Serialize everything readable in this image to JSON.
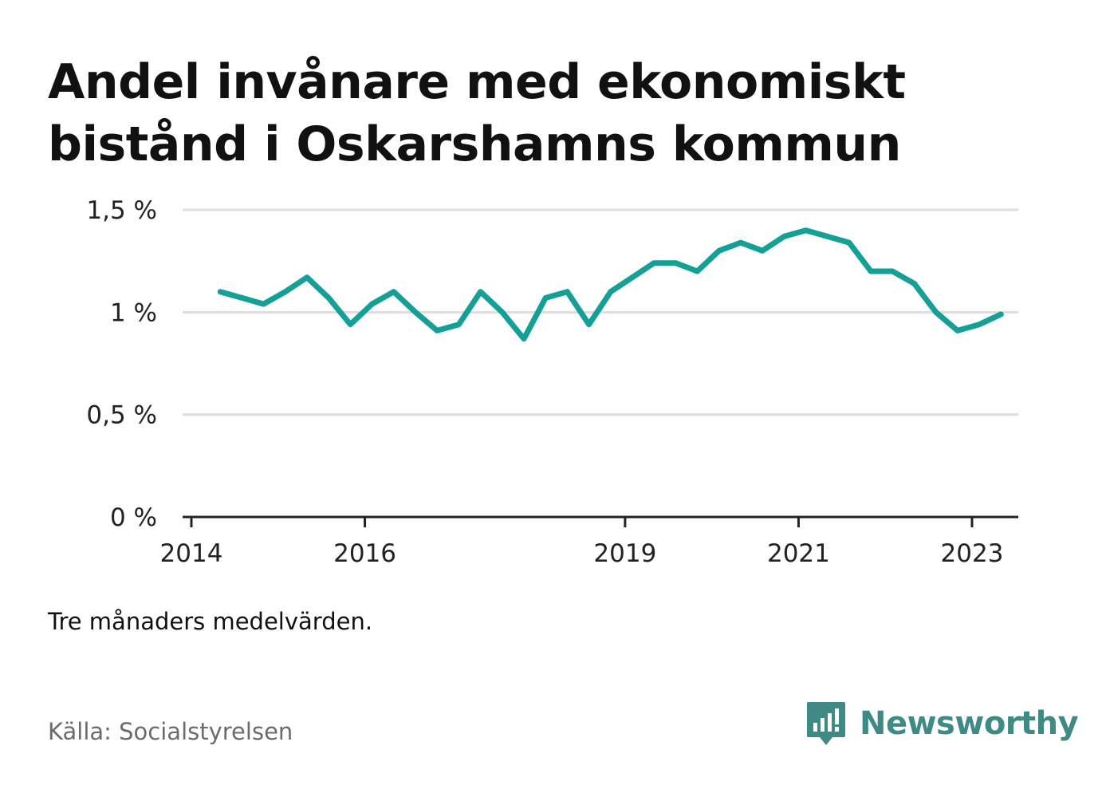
{
  "title_lines": [
    "Andel invånare med ekonomiskt",
    "bistånd i Oskarshamns kommun"
  ],
  "note": "Tre månaders medelvärden.",
  "source": "Källa: Socialstyrelsen",
  "brand": {
    "name": "Newsworthy",
    "icon": "newsworthy-logo-icon",
    "color": "#3f8a84"
  },
  "chart_data": {
    "type": "line",
    "title": "Andel invånare med ekonomiskt bistånd i Oskarshamns kommun",
    "xlabel": "",
    "ylabel": "",
    "ylim": [
      0,
      1.5
    ],
    "xlim": [
      "2014-01",
      "2023-07"
    ],
    "yticks": [
      {
        "value": 0,
        "label": "0 %"
      },
      {
        "value": 0.5,
        "label": "0,5 %"
      },
      {
        "value": 1,
        "label": "1 %"
      },
      {
        "value": 1.5,
        "label": "1,5 %"
      }
    ],
    "xticks": [
      {
        "value": "2014-01",
        "label": "2014"
      },
      {
        "value": "2016-01",
        "label": "2016"
      },
      {
        "value": "2019-01",
        "label": "2019"
      },
      {
        "value": "2021-01",
        "label": "2021"
      },
      {
        "value": "2023-01",
        "label": "2023"
      }
    ],
    "grid": true,
    "line_color": "#14a096",
    "series": [
      {
        "x": [
          "2014-05",
          "2014-08",
          "2014-11",
          "2015-02",
          "2015-05",
          "2015-08",
          "2015-11",
          "2016-02",
          "2016-05",
          "2016-08",
          "2016-11",
          "2017-02",
          "2017-05",
          "2017-08",
          "2017-11",
          "2018-02",
          "2018-05",
          "2018-08",
          "2018-11",
          "2019-02",
          "2019-05",
          "2019-08",
          "2019-11",
          "2020-02",
          "2020-05",
          "2020-08",
          "2020-11",
          "2021-02",
          "2021-05",
          "2021-08",
          "2021-11",
          "2022-02",
          "2022-05",
          "2022-08",
          "2022-11",
          "2023-02",
          "2023-05"
        ],
        "y": [
          1.1,
          1.07,
          1.04,
          1.1,
          1.17,
          1.07,
          0.94,
          1.04,
          1.1,
          1.0,
          0.91,
          0.94,
          1.1,
          1.0,
          0.87,
          1.07,
          1.1,
          0.94,
          1.1,
          1.17,
          1.24,
          1.24,
          1.2,
          1.3,
          1.34,
          1.3,
          1.37,
          1.4,
          1.37,
          1.34,
          1.2,
          1.2,
          1.14,
          1.0,
          0.91,
          0.94,
          0.99
        ]
      }
    ]
  }
}
